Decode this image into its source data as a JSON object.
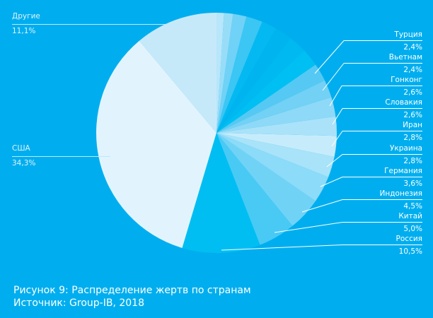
{
  "background_color": "#00AEEF",
  "caption": {
    "title": "Рисунок 9: Распределение жертв по странам",
    "source": "Источник: Group-IB, 2018"
  },
  "chart_data": {
    "type": "pie",
    "title": "Рисунок 9: Распределение жертв по странам",
    "source": "Источник: Group-IB, 2018",
    "start_angle": "12 o'clock",
    "direction": "counter-clockwise",
    "unit": "%",
    "slices": [
      {
        "label": "Другие",
        "value": 11.1,
        "display": "11,1%",
        "color": "#C6E9FA"
      },
      {
        "label": "США",
        "value": 34.3,
        "display": "34,3%",
        "color": "#E1F4FD"
      },
      {
        "label": "Россия",
        "value": 10.5,
        "display": "10,5%",
        "color": "#00BEF2"
      },
      {
        "label": "Китай",
        "value": 5.0,
        "display": "5,0%",
        "color": "#48CAF5"
      },
      {
        "label": "Индонезия",
        "value": 4.5,
        "display": "4,5%",
        "color": "#70D3F6"
      },
      {
        "label": "Германия",
        "value": 3.6,
        "display": "3,6%",
        "color": "#8CDBF8"
      },
      {
        "label": "Украина",
        "value": 2.8,
        "display": "2,8%",
        "color": "#A8E3F9"
      },
      {
        "label": "Иран",
        "value": 2.8,
        "display": "2,8%",
        "color": "#C6ECFB"
      },
      {
        "label": "Словакия",
        "value": 2.6,
        "display": "2,6%",
        "color": "#A9E2F9"
      },
      {
        "label": "Гонконг",
        "value": 2.6,
        "display": "2,6%",
        "color": "#8ED9F7"
      },
      {
        "label": "Вьетнам",
        "value": 2.4,
        "display": "2,4%",
        "color": "#72D1F5"
      },
      {
        "label": "Турция",
        "value": 2.4,
        "display": "2,4%",
        "color": "#55C9F3"
      },
      {
        "label": "",
        "value": 2.4,
        "display": "",
        "color": "#00C0F3"
      },
      {
        "label": "",
        "value": 2.4,
        "display": "",
        "color": "#00B9F1"
      },
      {
        "label": "",
        "value": 2.4,
        "display": "",
        "color": "#00B4EF"
      },
      {
        "label": "",
        "value": 2.0,
        "display": "",
        "color": "#04B9F1"
      },
      {
        "label": "",
        "value": 2.2,
        "display": "",
        "color": "#3BC6F4"
      },
      {
        "label": "",
        "value": 1.8,
        "display": "",
        "color": "#6FD2F6"
      },
      {
        "label": "",
        "value": 1.2,
        "display": "",
        "color": "#98DDF8"
      },
      {
        "label": "",
        "value": 1.0,
        "display": "",
        "color": "#B8E6FA"
      }
    ]
  },
  "labels": {
    "drugie": {
      "name": "Другие",
      "value": "11,1%"
    },
    "usa": {
      "name": "США",
      "value": "34,3%"
    },
    "turkey": {
      "name": "Турция",
      "value": "2,4%"
    },
    "vietnam": {
      "name": "Вьетнам",
      "value": "2,4%"
    },
    "hongkong": {
      "name": "Гонконг",
      "value": "2,6%"
    },
    "slovakia": {
      "name": "Словакия",
      "value": "2,6%"
    },
    "iran": {
      "name": "Иран",
      "value": "2,8%"
    },
    "ukraine": {
      "name": "Украина",
      "value": "2,8%"
    },
    "germany": {
      "name": "Германия",
      "value": "3,6%"
    },
    "indonesia": {
      "name": "Индонезия",
      "value": "4,5%"
    },
    "china": {
      "name": "Китай",
      "value": "5,0%"
    },
    "russia": {
      "name": "Россия",
      "value": "10,5%"
    }
  }
}
